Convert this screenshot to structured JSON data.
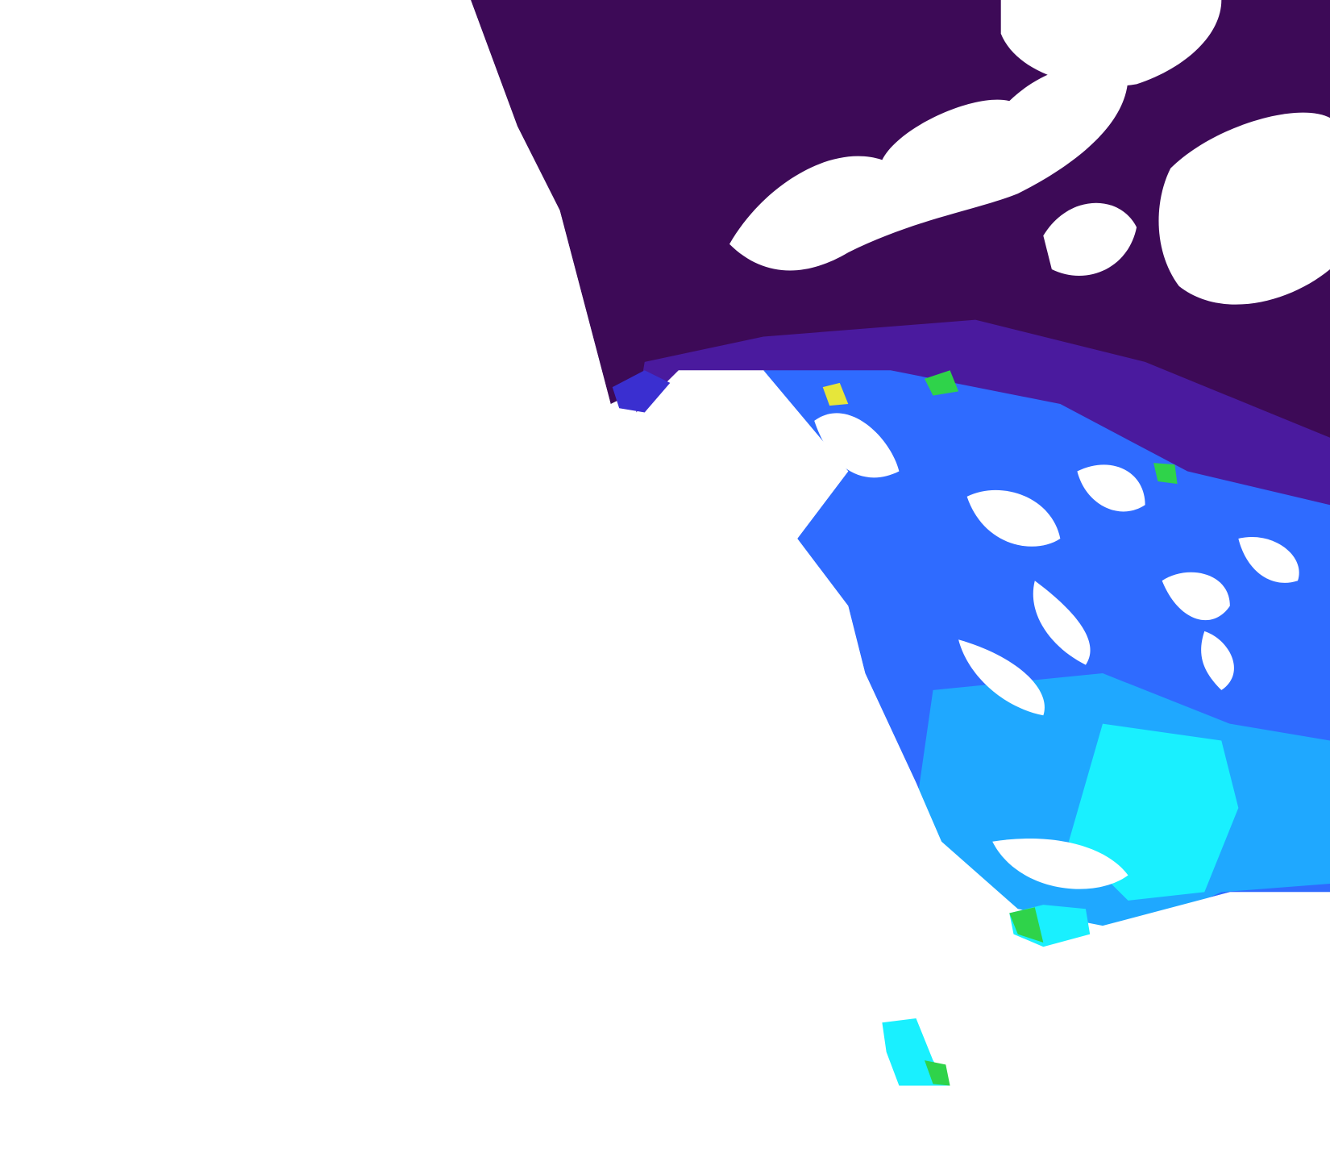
{
  "map": {
    "background_color": "#ffffff",
    "colors": {
      "deep": "#3d0a57",
      "violet": "#4a1a9e",
      "indigo": "#3a2fd0",
      "blue": "#2f6bff",
      "sky": "#1fa8ff",
      "cyan": "#19f0ff",
      "green": "#2fd34a",
      "yellow": "#e6e63a",
      "cloud": "#ffffff"
    }
  }
}
